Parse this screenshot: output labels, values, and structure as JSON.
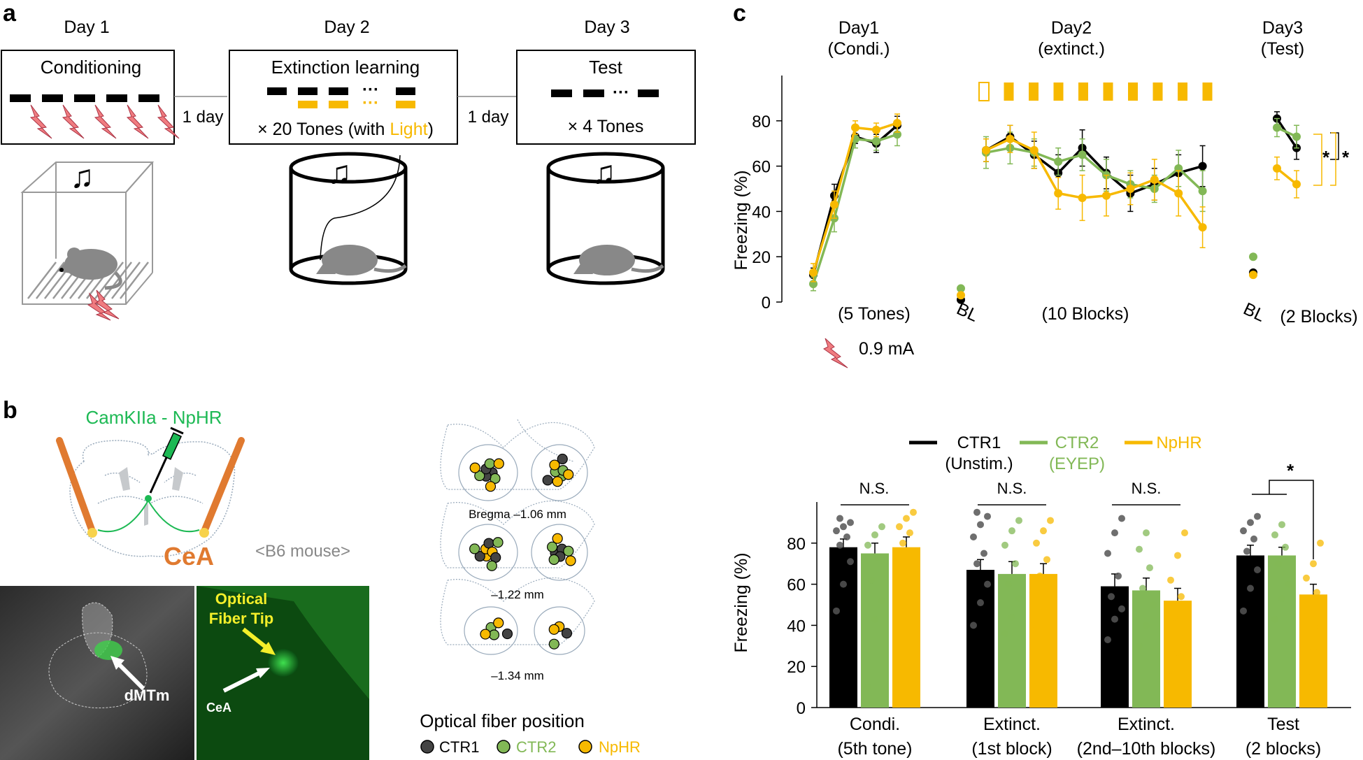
{
  "panels": {
    "a": "a",
    "b": "b",
    "c": "c"
  },
  "colors": {
    "ctr1": "#000000",
    "ctr2": "#82b856",
    "nphr": "#f7b900",
    "shock": "#f07c80",
    "virus": "#1db954",
    "cea": "#e07a30",
    "grey": "#888888"
  },
  "protocol": {
    "day1": {
      "day": "Day 1",
      "box": "Conditioning"
    },
    "gap1": "1 day",
    "day2": {
      "day": "Day 2",
      "box": "Extinction learning",
      "tones_prefix": "× 20 Tones (with ",
      "light": "Light",
      "tones_suffix": ")",
      "dots": "···"
    },
    "gap2": "1 day",
    "day3": {
      "day": "Day 3",
      "box": "Test",
      "tones": "× 4 Tones",
      "dots": "···"
    }
  },
  "anatomy": {
    "virus_label": "CamKIIa - NpHR",
    "cea_label": "CeA",
    "mouse_label": "<B6 mouse>",
    "micro_dmtm": "dMTm",
    "micro_tip": [
      "Optical",
      "Fiber Tip"
    ],
    "micro_cea": "CeA",
    "bregma": [
      "Bregma –1.06 mm",
      "–1.22 mm",
      "–1.34 mm"
    ],
    "fiber_title": "Optical fiber position",
    "fiber_legend": [
      "CTR1",
      "CTR2",
      "NpHR"
    ]
  },
  "chart_data": [
    {
      "type": "line",
      "title": "",
      "ylabel": "Freezing (%)",
      "ylim": [
        0,
        100
      ],
      "yticks": [
        0,
        20,
        40,
        60,
        80
      ],
      "day_headers": [
        [
          "Day1",
          "(Condi.)"
        ],
        [
          "Day2",
          "(extinct.)"
        ],
        [
          "Day3",
          "(Test)"
        ]
      ],
      "xlabels": [
        "(5 Tones)",
        "BL",
        "(10 Blocks)",
        "BL",
        "(2 Blocks)"
      ],
      "shock_label": "0.9 mA",
      "significance": [
        "*",
        "*"
      ],
      "segments": [
        {
          "name": "Day1 tones",
          "x": [
            1,
            2,
            3,
            4,
            5
          ],
          "series": [
            {
              "name": "CTR1",
              "values": [
                12,
                47,
                73,
                70,
                78
              ],
              "err": [
                3,
                5,
                3,
                4,
                4
              ]
            },
            {
              "name": "CTR2",
              "values": [
                8,
                37,
                72,
                71,
                74
              ],
              "err": [
                3,
                6,
                4,
                4,
                5
              ]
            },
            {
              "name": "NpHR",
              "values": [
                13,
                43,
                77,
                76,
                79
              ],
              "err": [
                4,
                6,
                3,
                3,
                4
              ]
            }
          ]
        },
        {
          "name": "Day2 baseline",
          "series": [
            {
              "name": "CTR1",
              "values": [
                1
              ]
            },
            {
              "name": "CTR2",
              "values": [
                6
              ]
            },
            {
              "name": "NpHR",
              "values": [
                3
              ]
            }
          ]
        },
        {
          "name": "Day2 blocks",
          "x": [
            1,
            2,
            3,
            4,
            5,
            6,
            7,
            8,
            9,
            10
          ],
          "series": [
            {
              "name": "CTR1",
              "values": [
                67,
                73,
                65,
                57,
                68,
                57,
                48,
                52,
                57,
                60
              ],
              "err": [
                5,
                5,
                6,
                8,
                8,
                7,
                8,
                7,
                8,
                9
              ]
            },
            {
              "name": "CTR2",
              "values": [
                66,
                68,
                66,
                62,
                65,
                56,
                52,
                50,
                59,
                49
              ],
              "err": [
                7,
                7,
                6,
                6,
                7,
                7,
                6,
                6,
                8,
                9
              ]
            },
            {
              "name": "NpHR",
              "values": [
                67,
                72,
                67,
                48,
                46,
                47,
                50,
                54,
                48,
                33
              ],
              "err": [
                5,
                6,
                8,
                7,
                10,
                9,
                7,
                9,
                10,
                9
              ]
            }
          ]
        },
        {
          "name": "Day3 baseline",
          "series": [
            {
              "name": "CTR1",
              "values": [
                13
              ]
            },
            {
              "name": "CTR2",
              "values": [
                20
              ]
            },
            {
              "name": "NpHR",
              "values": [
                12
              ]
            }
          ]
        },
        {
          "name": "Day3 blocks",
          "x": [
            1,
            2
          ],
          "series": [
            {
              "name": "CTR1",
              "values": [
                81,
                68
              ],
              "err": [
                3,
                5
              ]
            },
            {
              "name": "CTR2",
              "values": [
                77,
                73
              ],
              "err": [
                4,
                5
              ]
            },
            {
              "name": "NpHR",
              "values": [
                59,
                52
              ],
              "err": [
                5,
                6
              ]
            }
          ]
        }
      ]
    },
    {
      "type": "bar",
      "ylabel": "Freezing (%)",
      "ylim": [
        0,
        100
      ],
      "yticks": [
        0,
        20,
        40,
        60,
        80
      ],
      "legend": [
        [
          "CTR1",
          "(Unstim.)"
        ],
        [
          "CTR2",
          "(EYEP)"
        ],
        [
          "NpHR",
          ""
        ]
      ],
      "categories": [
        [
          "Condi.",
          "(5th tone)"
        ],
        [
          "Extinct.",
          "(1st block)"
        ],
        [
          "Extinct.",
          "(2nd–10th blocks)"
        ],
        [
          "Test",
          "(2 blocks)"
        ]
      ],
      "series": [
        {
          "name": "CTR1",
          "values": [
            78,
            67,
            59,
            74
          ],
          "err": [
            4,
            5,
            6,
            5
          ]
        },
        {
          "name": "CTR2",
          "values": [
            75,
            65,
            57,
            74
          ],
          "err": [
            5,
            6,
            6,
            4
          ]
        },
        {
          "name": "NpHR",
          "values": [
            78,
            65,
            52,
            55
          ],
          "err": [
            5,
            5,
            6,
            5
          ]
        }
      ],
      "points": [
        [
          [
            47,
            60,
            71,
            79,
            83,
            86,
            88,
            90,
            92
          ],
          [
            10,
            43,
            52,
            62,
            73,
            79,
            84,
            88
          ],
          [
            49,
            62,
            75,
            80,
            85,
            88,
            92,
            95
          ]
        ],
        [
          [
            40,
            51,
            60,
            70,
            75,
            83,
            89,
            93,
            95
          ],
          [
            36,
            44,
            53,
            60,
            70,
            79,
            86,
            91
          ],
          [
            38,
            48,
            57,
            64,
            72,
            80,
            86,
            91
          ]
        ],
        [
          [
            33,
            43,
            48,
            54,
            64,
            75,
            85,
            92
          ],
          [
            30,
            40,
            50,
            58,
            68,
            77,
            85
          ],
          [
            18,
            27,
            34,
            44,
            54,
            62,
            74,
            85
          ]
        ],
        [
          [
            47,
            58,
            67,
            76,
            82,
            86,
            90,
            93
          ],
          [
            43,
            53,
            60,
            70,
            78,
            84,
            89
          ],
          [
            17,
            28,
            39,
            48,
            56,
            63,
            70,
            80
          ]
        ]
      ],
      "significance": [
        {
          "label": "N.S.",
          "group": 0
        },
        {
          "label": "N.S.",
          "group": 1
        },
        {
          "label": "N.S.",
          "group": 2
        },
        {
          "label": "*",
          "group": 3
        }
      ]
    }
  ]
}
